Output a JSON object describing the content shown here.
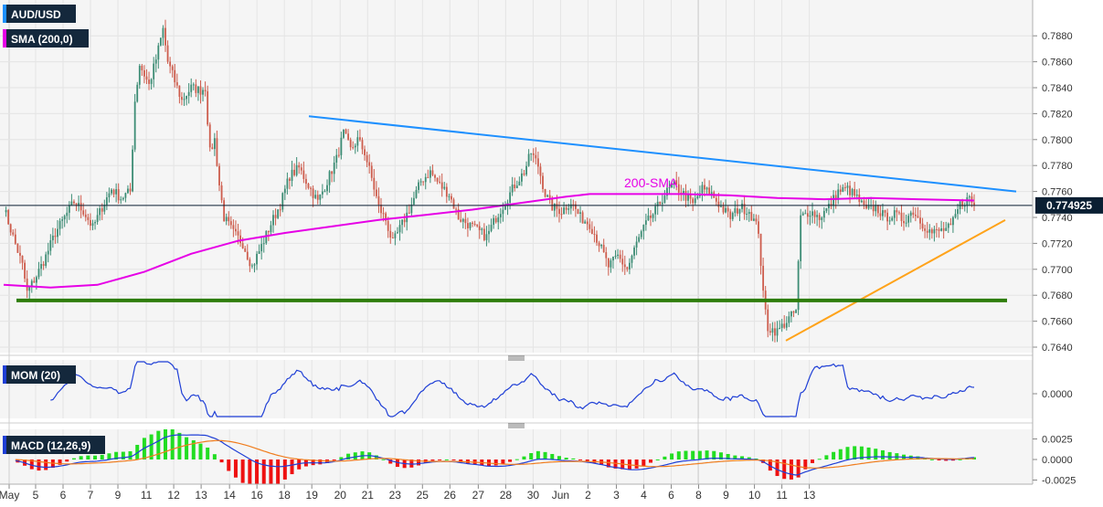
{
  "colors": {
    "bull": "#3c8c74",
    "bear": "#cd5c4c",
    "sma": "#e600e6",
    "trend_down": "#1e90ff",
    "trend_up": "#ffa31a",
    "support": "#2e7d0a",
    "mom": "#1f3fd6",
    "macd": "#1f3fd6",
    "signal": "#f07d1e",
    "hist_pos": "#22dd22",
    "hist_neg": "#ee1111",
    "current_price_bg": "#0a1f33",
    "badge_bg": "#14283c"
  },
  "labels": {
    "symbol": "AUD/USD",
    "sma_indicator": "SMA (200,0)",
    "sma_annotation": "200-SMA",
    "current_price": "0.774925",
    "mom_indicator": "MOM (20)",
    "macd_indicator": "MACD (12,26,9)"
  },
  "chart_data": [
    {
      "type": "candlestick",
      "title": "AUD/USD",
      "x_ticks": [
        "May",
        "5",
        "6",
        "7",
        "9",
        "11",
        "12",
        "13",
        "14",
        "16",
        "18",
        "19",
        "20",
        "21",
        "23",
        "25",
        "26",
        "27",
        "28",
        "30",
        "Jun",
        "2",
        "3",
        "4",
        "6",
        "8",
        "9",
        "10",
        "11",
        "13"
      ],
      "ylim": [
        0.764,
        0.789
      ],
      "y_ticks": [
        "0.7640",
        "0.7660",
        "0.7680",
        "0.7700",
        "0.7720",
        "0.7740",
        "0.7760",
        "0.7780",
        "0.7800",
        "0.7820",
        "0.7840",
        "0.7860",
        "0.7880"
      ],
      "current_price": 0.774925,
      "close_path": [
        [
          0,
          0.7748
        ],
        [
          4,
          0.7725
        ],
        [
          8,
          0.7703
        ],
        [
          10,
          0.7682
        ],
        [
          14,
          0.7695
        ],
        [
          18,
          0.771
        ],
        [
          22,
          0.7728
        ],
        [
          26,
          0.774
        ],
        [
          30,
          0.7752
        ],
        [
          34,
          0.7745
        ],
        [
          38,
          0.7732
        ],
        [
          42,
          0.7748
        ],
        [
          46,
          0.7762
        ],
        [
          50,
          0.7755
        ],
        [
          54,
          0.776
        ],
        [
          56,
          0.783
        ],
        [
          58,
          0.7858
        ],
        [
          62,
          0.7842
        ],
        [
          65,
          0.7862
        ],
        [
          68,
          0.7885
        ],
        [
          70,
          0.786
        ],
        [
          73,
          0.7845
        ],
        [
          76,
          0.783
        ],
        [
          80,
          0.784
        ],
        [
          84,
          0.7838
        ],
        [
          86,
          0.784
        ],
        [
          88,
          0.779
        ],
        [
          90,
          0.78
        ],
        [
          92,
          0.7765
        ],
        [
          94,
          0.774
        ],
        [
          98,
          0.7728
        ],
        [
          102,
          0.772
        ],
        [
          106,
          0.7702
        ],
        [
          110,
          0.7718
        ],
        [
          114,
          0.7735
        ],
        [
          118,
          0.775
        ],
        [
          122,
          0.7772
        ],
        [
          126,
          0.7778
        ],
        [
          130,
          0.7765
        ],
        [
          134,
          0.7752
        ],
        [
          138,
          0.7768
        ],
        [
          142,
          0.7785
        ],
        [
          145,
          0.7805
        ],
        [
          148,
          0.7792
        ],
        [
          151,
          0.78
        ],
        [
          154,
          0.779
        ],
        [
          157,
          0.777
        ],
        [
          160,
          0.7748
        ],
        [
          163,
          0.7738
        ],
        [
          166,
          0.772
        ],
        [
          170,
          0.7735
        ],
        [
          174,
          0.775
        ],
        [
          178,
          0.7768
        ],
        [
          182,
          0.7775
        ],
        [
          186,
          0.7765
        ],
        [
          190,
          0.7758
        ],
        [
          194,
          0.774
        ],
        [
          198,
          0.7735
        ],
        [
          202,
          0.773
        ],
        [
          206,
          0.7725
        ],
        [
          210,
          0.774
        ],
        [
          214,
          0.7752
        ],
        [
          218,
          0.7765
        ],
        [
          222,
          0.7775
        ],
        [
          225,
          0.779
        ],
        [
          228,
          0.778
        ],
        [
          231,
          0.7758
        ],
        [
          234,
          0.7748
        ],
        [
          238,
          0.7745
        ],
        [
          242,
          0.7752
        ],
        [
          246,
          0.774
        ],
        [
          250,
          0.7735
        ],
        [
          254,
          0.772
        ],
        [
          258,
          0.7702
        ],
        [
          262,
          0.771
        ],
        [
          266,
          0.77
        ],
        [
          270,
          0.772
        ],
        [
          274,
          0.7735
        ],
        [
          278,
          0.7745
        ],
        [
          282,
          0.7758
        ],
        [
          286,
          0.7765
        ],
        [
          290,
          0.7758
        ],
        [
          294,
          0.775
        ],
        [
          298,
          0.7762
        ],
        [
          302,
          0.7758
        ],
        [
          306,
          0.7748
        ],
        [
          310,
          0.774
        ],
        [
          314,
          0.7748
        ],
        [
          318,
          0.7745
        ],
        [
          322,
          0.773
        ],
        [
          324,
          0.768
        ],
        [
          326,
          0.7655
        ],
        [
          330,
          0.7652
        ],
        [
          334,
          0.766
        ],
        [
          338,
          0.7668
        ],
        [
          340,
          0.774
        ],
        [
          344,
          0.7745
        ],
        [
          348,
          0.774
        ],
        [
          352,
          0.7748
        ],
        [
          356,
          0.776
        ],
        [
          360,
          0.7762
        ],
        [
          364,
          0.7755
        ],
        [
          368,
          0.7745
        ],
        [
          372,
          0.7748
        ],
        [
          376,
          0.774
        ],
        [
          380,
          0.7742
        ],
        [
          384,
          0.7738
        ],
        [
          388,
          0.7745
        ],
        [
          392,
          0.7735
        ],
        [
          396,
          0.7728
        ],
        [
          400,
          0.773
        ],
        [
          404,
          0.7732
        ],
        [
          408,
          0.775
        ],
        [
          412,
          0.7755
        ],
        [
          414,
          0.7749
        ]
      ],
      "sma_200": [
        [
          0,
          0.7688
        ],
        [
          20,
          0.7686
        ],
        [
          40,
          0.7688
        ],
        [
          60,
          0.7698
        ],
        [
          80,
          0.7712
        ],
        [
          100,
          0.7722
        ],
        [
          120,
          0.7728
        ],
        [
          140,
          0.7733
        ],
        [
          160,
          0.7738
        ],
        [
          180,
          0.7742
        ],
        [
          200,
          0.7746
        ],
        [
          220,
          0.7751
        ],
        [
          240,
          0.7756
        ],
        [
          250,
          0.7758
        ],
        [
          270,
          0.7758
        ],
        [
          290,
          0.7758
        ],
        [
          310,
          0.7757
        ],
        [
          330,
          0.7755
        ],
        [
          350,
          0.7754
        ],
        [
          370,
          0.7755
        ],
        [
          390,
          0.7754
        ],
        [
          414,
          0.7753
        ]
      ],
      "trendlines": [
        {
          "name": "falling resistance",
          "from": [
            130,
            0.7818
          ],
          "to": [
            414,
            0.776
          ]
        },
        {
          "name": "rising support",
          "from": [
            330,
            0.7645
          ],
          "to": [
            414,
            0.7738
          ]
        },
        {
          "name": "horizontal support",
          "from": [
            6,
            0.7676
          ],
          "to": [
            414,
            0.7676
          ]
        }
      ]
    },
    {
      "type": "line",
      "title": "MOM (20)",
      "y_ticks": [
        "0.0000"
      ],
      "zero_value": 0
    },
    {
      "type": "bar",
      "title": "MACD (12,26,9)",
      "ylim": [
        -0.0028,
        0.0038
      ],
      "y_ticks": [
        "0.0025",
        "0.0000",
        "-0.0025"
      ]
    }
  ]
}
